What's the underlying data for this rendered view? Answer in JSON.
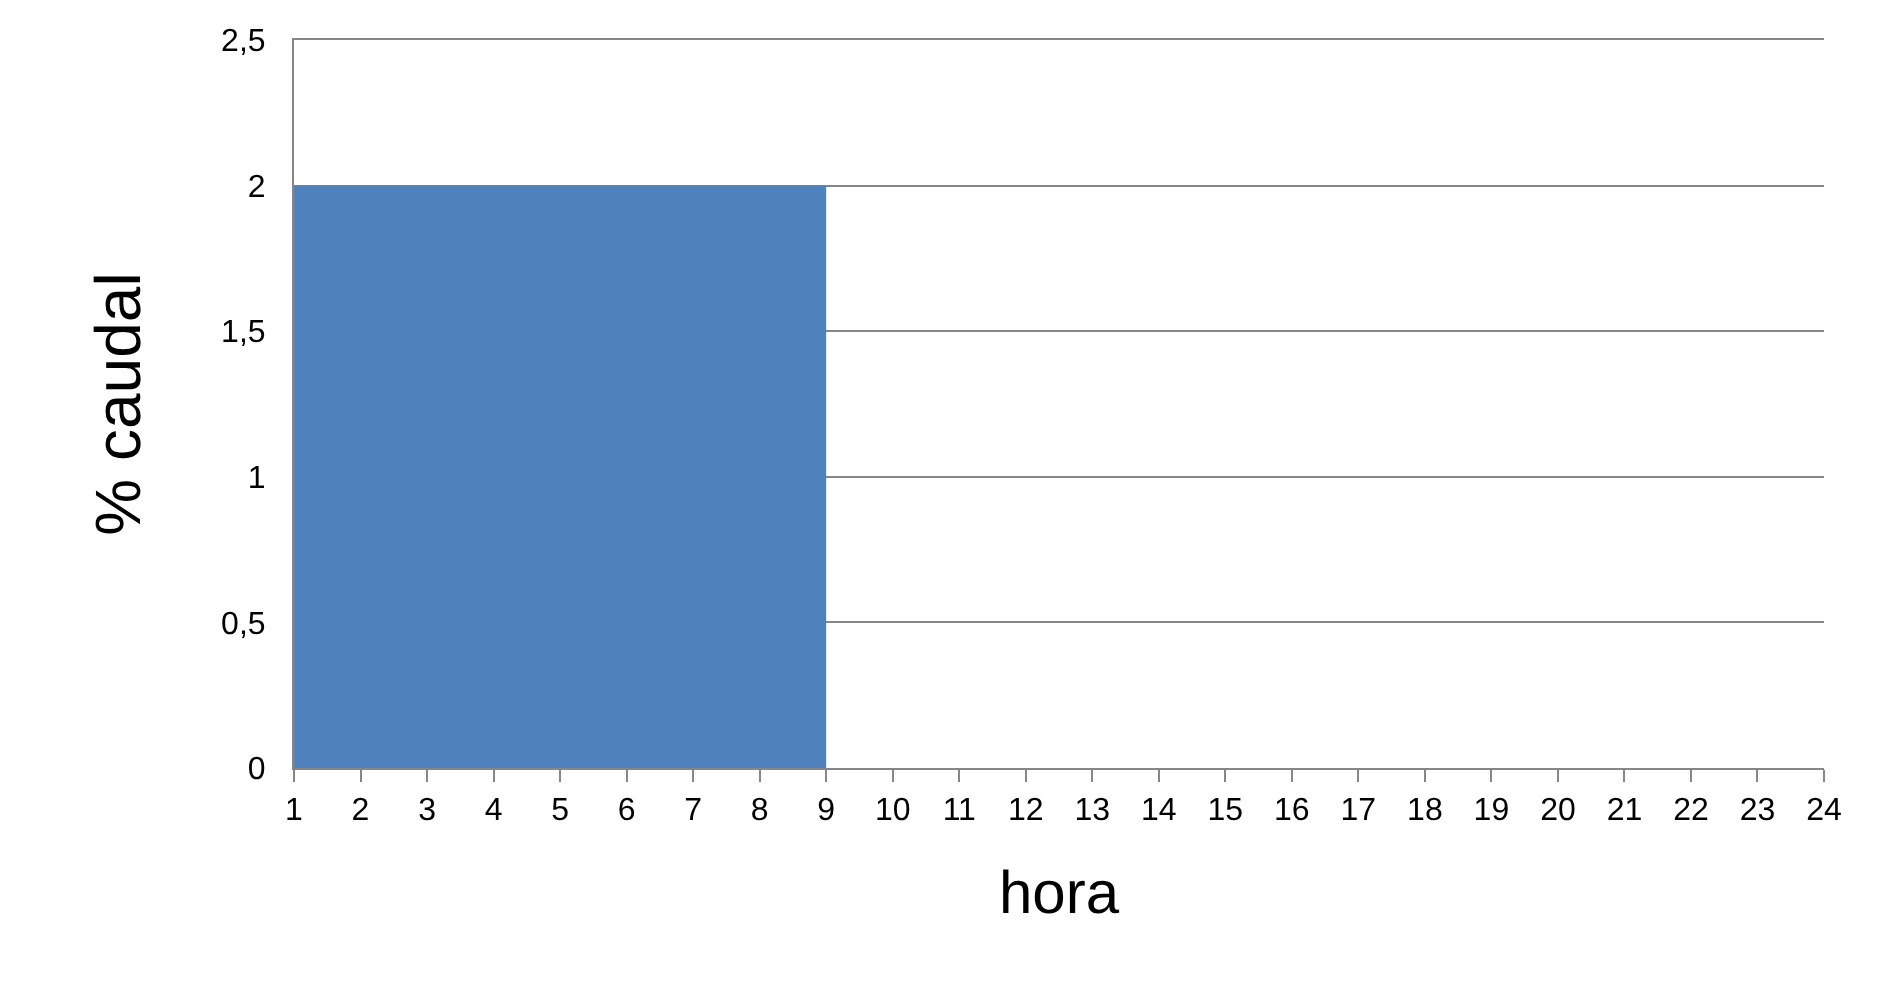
{
  "chart_data": {
    "type": "area",
    "xlabel": "hora",
    "ylabel": "% caudal",
    "x": [
      1,
      2,
      3,
      4,
      5,
      6,
      7,
      8,
      9,
      9,
      10,
      11,
      12,
      13,
      14,
      15,
      16,
      17,
      18,
      19,
      20,
      21,
      22,
      23,
      24
    ],
    "series": [
      {
        "color": "#4f81bd",
        "values": [
          2,
          2,
          2,
          2,
          2,
          2,
          2,
          2,
          2,
          0,
          0,
          0,
          0,
          0,
          0,
          0,
          0,
          0,
          0,
          0,
          0,
          0,
          0,
          0,
          0
        ]
      }
    ],
    "xlim": [
      1,
      24
    ],
    "xticks": [
      1,
      2,
      3,
      4,
      5,
      6,
      7,
      8,
      9,
      10,
      11,
      12,
      13,
      14,
      15,
      16,
      17,
      18,
      19,
      20,
      21,
      22,
      23,
      24
    ],
    "ylim": [
      0,
      2.5
    ],
    "yticks": [
      0,
      {
        "value": 0.5,
        "label": "0,5"
      },
      1,
      {
        "value": 1.5,
        "label": "1,5"
      },
      2,
      {
        "value": 2.5,
        "label": "2,5"
      }
    ],
    "grid": "y"
  }
}
